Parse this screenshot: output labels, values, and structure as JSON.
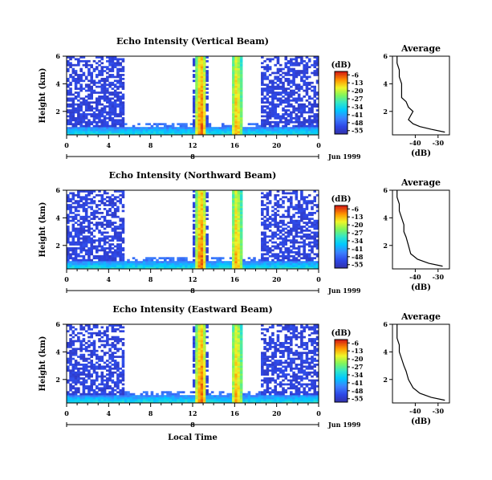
{
  "chart_data": {
    "type": "heatmap",
    "xlabel": "Local Time",
    "panels": [
      {
        "title": "Echo Intensity (Vertical Beam)",
        "ylabel": "Height (km)",
        "x_ticks": [
          "0",
          "4",
          "8",
          "12",
          "16",
          "20",
          "0"
        ],
        "y_ticks": [
          "2",
          "4",
          "6"
        ],
        "date_marker": "8",
        "date_label": "Jun 1999",
        "colorbar": {
          "label": "(dB)",
          "ticks": [
            "-6",
            "-13",
            "-20",
            "-27",
            "-34",
            "-41",
            "-48",
            "-55"
          ]
        },
        "average": {
          "title": "Average",
          "xlabel": "(dB)",
          "x_ticks": [
            "-40",
            "-30"
          ],
          "y_ticks": [
            "2",
            "4",
            "6"
          ],
          "profile": [
            [
              -27,
              0.5
            ],
            [
              -33,
              0.7
            ],
            [
              -38,
              0.9
            ],
            [
              -41,
              1.1
            ],
            [
              -43,
              1.4
            ],
            [
              -42,
              1.7
            ],
            [
              -41,
              2.0
            ],
            [
              -43,
              2.3
            ],
            [
              -44,
              2.7
            ],
            [
              -46,
              3.0
            ],
            [
              -46,
              3.5
            ],
            [
              -46,
              4.0
            ],
            [
              -47,
              4.5
            ],
            [
              -47,
              5.0
            ],
            [
              -48,
              5.5
            ],
            [
              -48,
              6.0
            ]
          ]
        }
      },
      {
        "title": "Echo Intensity (Northward Beam)",
        "ylabel": "Height (km)",
        "x_ticks": [
          "0",
          "4",
          "8",
          "12",
          "16",
          "20",
          "0"
        ],
        "y_ticks": [
          "2",
          "4",
          "6"
        ],
        "date_marker": "8",
        "date_label": "Jun 1999",
        "colorbar": {
          "label": "(dB)",
          "ticks": [
            "-6",
            "-13",
            "-20",
            "-27",
            "-34",
            "-41",
            "-48",
            "-55"
          ]
        },
        "average": {
          "title": "Average",
          "xlabel": "(dB)",
          "x_ticks": [
            "-40",
            "-30"
          ],
          "y_ticks": [
            "2",
            "4",
            "6"
          ],
          "profile": [
            [
              -28,
              0.5
            ],
            [
              -34,
              0.7
            ],
            [
              -39,
              1.0
            ],
            [
              -42,
              1.4
            ],
            [
              -43,
              2.0
            ],
            [
              -44,
              2.6
            ],
            [
              -45,
              3.0
            ],
            [
              -45,
              3.5
            ],
            [
              -46,
              4.0
            ],
            [
              -47,
              4.5
            ],
            [
              -47,
              5.0
            ],
            [
              -48,
              5.5
            ],
            [
              -48,
              6.0
            ]
          ]
        }
      },
      {
        "title": "Echo Intensity (Eastward Beam)",
        "ylabel": "Height (km)",
        "x_ticks": [
          "0",
          "4",
          "8",
          "12",
          "16",
          "20",
          "0"
        ],
        "y_ticks": [
          "2",
          "4",
          "6"
        ],
        "date_marker": "8",
        "date_label": "Jun 1999",
        "colorbar": {
          "label": "(dB)",
          "ticks": [
            "-6",
            "-13",
            "-20",
            "-27",
            "-34",
            "-41",
            "-48",
            "-55"
          ]
        },
        "average": {
          "title": "Average",
          "xlabel": "(dB)",
          "x_ticks": [
            "-40",
            "-30"
          ],
          "y_ticks": [
            "2",
            "4",
            "6"
          ],
          "profile": [
            [
              -27,
              0.5
            ],
            [
              -33,
              0.7
            ],
            [
              -38,
              1.0
            ],
            [
              -41,
              1.4
            ],
            [
              -43,
              2.0
            ],
            [
              -44,
              2.6
            ],
            [
              -45,
              3.0
            ],
            [
              -46,
              3.5
            ],
            [
              -47,
              4.0
            ],
            [
              -47,
              4.5
            ],
            [
              -48,
              5.0
            ],
            [
              -48,
              5.5
            ],
            [
              -48,
              6.0
            ]
          ]
        }
      }
    ],
    "x_range_hours": [
      0,
      24
    ],
    "y_range_km": [
      0.3,
      6
    ],
    "colorbar_range_db": [
      -58,
      -3
    ],
    "average_x_range_db": [
      -50,
      -25
    ],
    "features": {
      "strong_bands_hours": [
        12.8,
        16.2
      ],
      "missing_data_intervals_hours": [
        [
          5.6,
          12.0
        ],
        [
          13.5,
          15.8
        ],
        [
          16.8,
          18.5
        ]
      ]
    }
  }
}
